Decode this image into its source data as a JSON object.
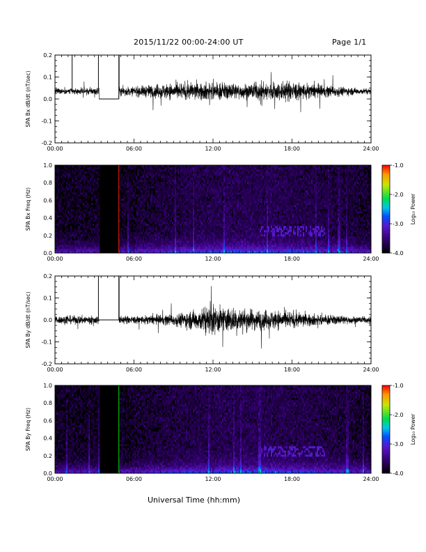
{
  "header": {
    "title": "2015/11/22  00:00-24:00 UT",
    "page": "Page 1/1"
  },
  "xaxis_label": "Universal Time (hh:mm)",
  "colorbar": {
    "label": "Log₁₀ Power",
    "ticks": [
      "-1.0",
      "-2.0",
      "-3.0",
      "-4.0"
    ],
    "range": [
      -4.0,
      -1.0
    ]
  },
  "colors": {
    "background": "#ffffff",
    "trace": "#000000",
    "data_gap": "#000000",
    "bx_spectrogram_marker": "#ff2200",
    "by_spectrogram_marker": "#00dd00"
  },
  "chart_data": [
    {
      "type": "line",
      "ylabel": "SPA Bx dB/dt (nT/sec)",
      "xlim_hours": [
        0,
        24
      ],
      "x_ticks": [
        "00:00",
        "06:00",
        "12:00",
        "18:00",
        "24:00"
      ],
      "y_ticks": [
        "0.2",
        "0.1",
        "0.0",
        "-0.1",
        "-0.2"
      ],
      "ylim": [
        -0.2,
        0.2
      ],
      "baseline": 0.035,
      "data_gaps_hours": [
        [
          3.35,
          4.85
        ]
      ],
      "gap_value": 0.0,
      "saturated_spikes_hours": [
        1.3,
        3.3,
        4.87
      ],
      "activity_profile": [
        {
          "hour": 0,
          "amplitude": 0.015
        },
        {
          "hour": 3,
          "amplitude": 0.02
        },
        {
          "hour": 6,
          "amplitude": 0.025
        },
        {
          "hour": 8,
          "amplitude": 0.04
        },
        {
          "hour": 10,
          "amplitude": 0.045
        },
        {
          "hour": 12,
          "amplitude": 0.05
        },
        {
          "hour": 14,
          "amplitude": 0.04
        },
        {
          "hour": 17.5,
          "amplitude": 0.055
        },
        {
          "hour": 20,
          "amplitude": 0.035
        },
        {
          "hour": 24,
          "amplitude": 0.012
        }
      ]
    },
    {
      "type": "heatmap",
      "ylabel": "SPA Bx Freq (Hz)",
      "xlim_hours": [
        0,
        24
      ],
      "ylim_hz": [
        0,
        1.0
      ],
      "x_ticks": [
        "00:00",
        "06:00",
        "12:00",
        "18:00",
        "24:00"
      ],
      "y_ticks": [
        "1.0",
        "0.8",
        "0.6",
        "0.4",
        "0.2",
        "0.0"
      ],
      "color_range": [
        -4.0,
        -1.0
      ],
      "data_gaps_hours": [
        [
          3.35,
          4.85
        ]
      ],
      "gap_edge_marker_hour": 4.85,
      "bright_bands": [
        {
          "hours": [
            15.5,
            20.5
          ],
          "freq_hz": [
            0.18,
            0.3
          ],
          "log_power": -3.1
        }
      ]
    },
    {
      "type": "line",
      "ylabel": "SPA By dB/dt (nT/sec)",
      "xlim_hours": [
        0,
        24
      ],
      "x_ticks": [
        "00:00",
        "06:00",
        "12:00",
        "18:00",
        "24:00"
      ],
      "y_ticks": [
        "0.2",
        "0.1",
        "0.0",
        "-0.1",
        "-0.2"
      ],
      "ylim": [
        -0.2,
        0.2
      ],
      "baseline": 0.0,
      "data_gaps_hours": [
        [
          3.35,
          4.85
        ]
      ],
      "gap_value": 0.0,
      "saturated_spikes_hours": [
        3.3,
        4.87
      ],
      "activity_profile": [
        {
          "hour": 0,
          "amplitude": 0.02
        },
        {
          "hour": 3,
          "amplitude": 0.025
        },
        {
          "hour": 6,
          "amplitude": 0.02
        },
        {
          "hour": 9,
          "amplitude": 0.03
        },
        {
          "hour": 12,
          "amplitude": 0.075
        },
        {
          "hour": 14,
          "amplitude": 0.06
        },
        {
          "hour": 17,
          "amplitude": 0.05
        },
        {
          "hour": 20,
          "amplitude": 0.03
        },
        {
          "hour": 24,
          "amplitude": 0.015
        }
      ]
    },
    {
      "type": "heatmap",
      "ylabel": "SPA By Freq (Hz)",
      "xlim_hours": [
        0,
        24
      ],
      "ylim_hz": [
        0,
        1.0
      ],
      "x_ticks": [
        "00:00",
        "06:00",
        "12:00",
        "18:00",
        "24:00"
      ],
      "y_ticks": [
        "1.0",
        "0.8",
        "0.6",
        "0.4",
        "0.2",
        "0.0"
      ],
      "color_range": [
        -4.0,
        -1.0
      ],
      "data_gaps_hours": [
        [
          3.35,
          4.85
        ]
      ],
      "gap_edge_marker_hour": 4.85,
      "bright_bands": [
        {
          "hours": [
            15.5,
            20.5
          ],
          "freq_hz": [
            0.18,
            0.3
          ],
          "log_power": -3.1
        }
      ]
    }
  ]
}
